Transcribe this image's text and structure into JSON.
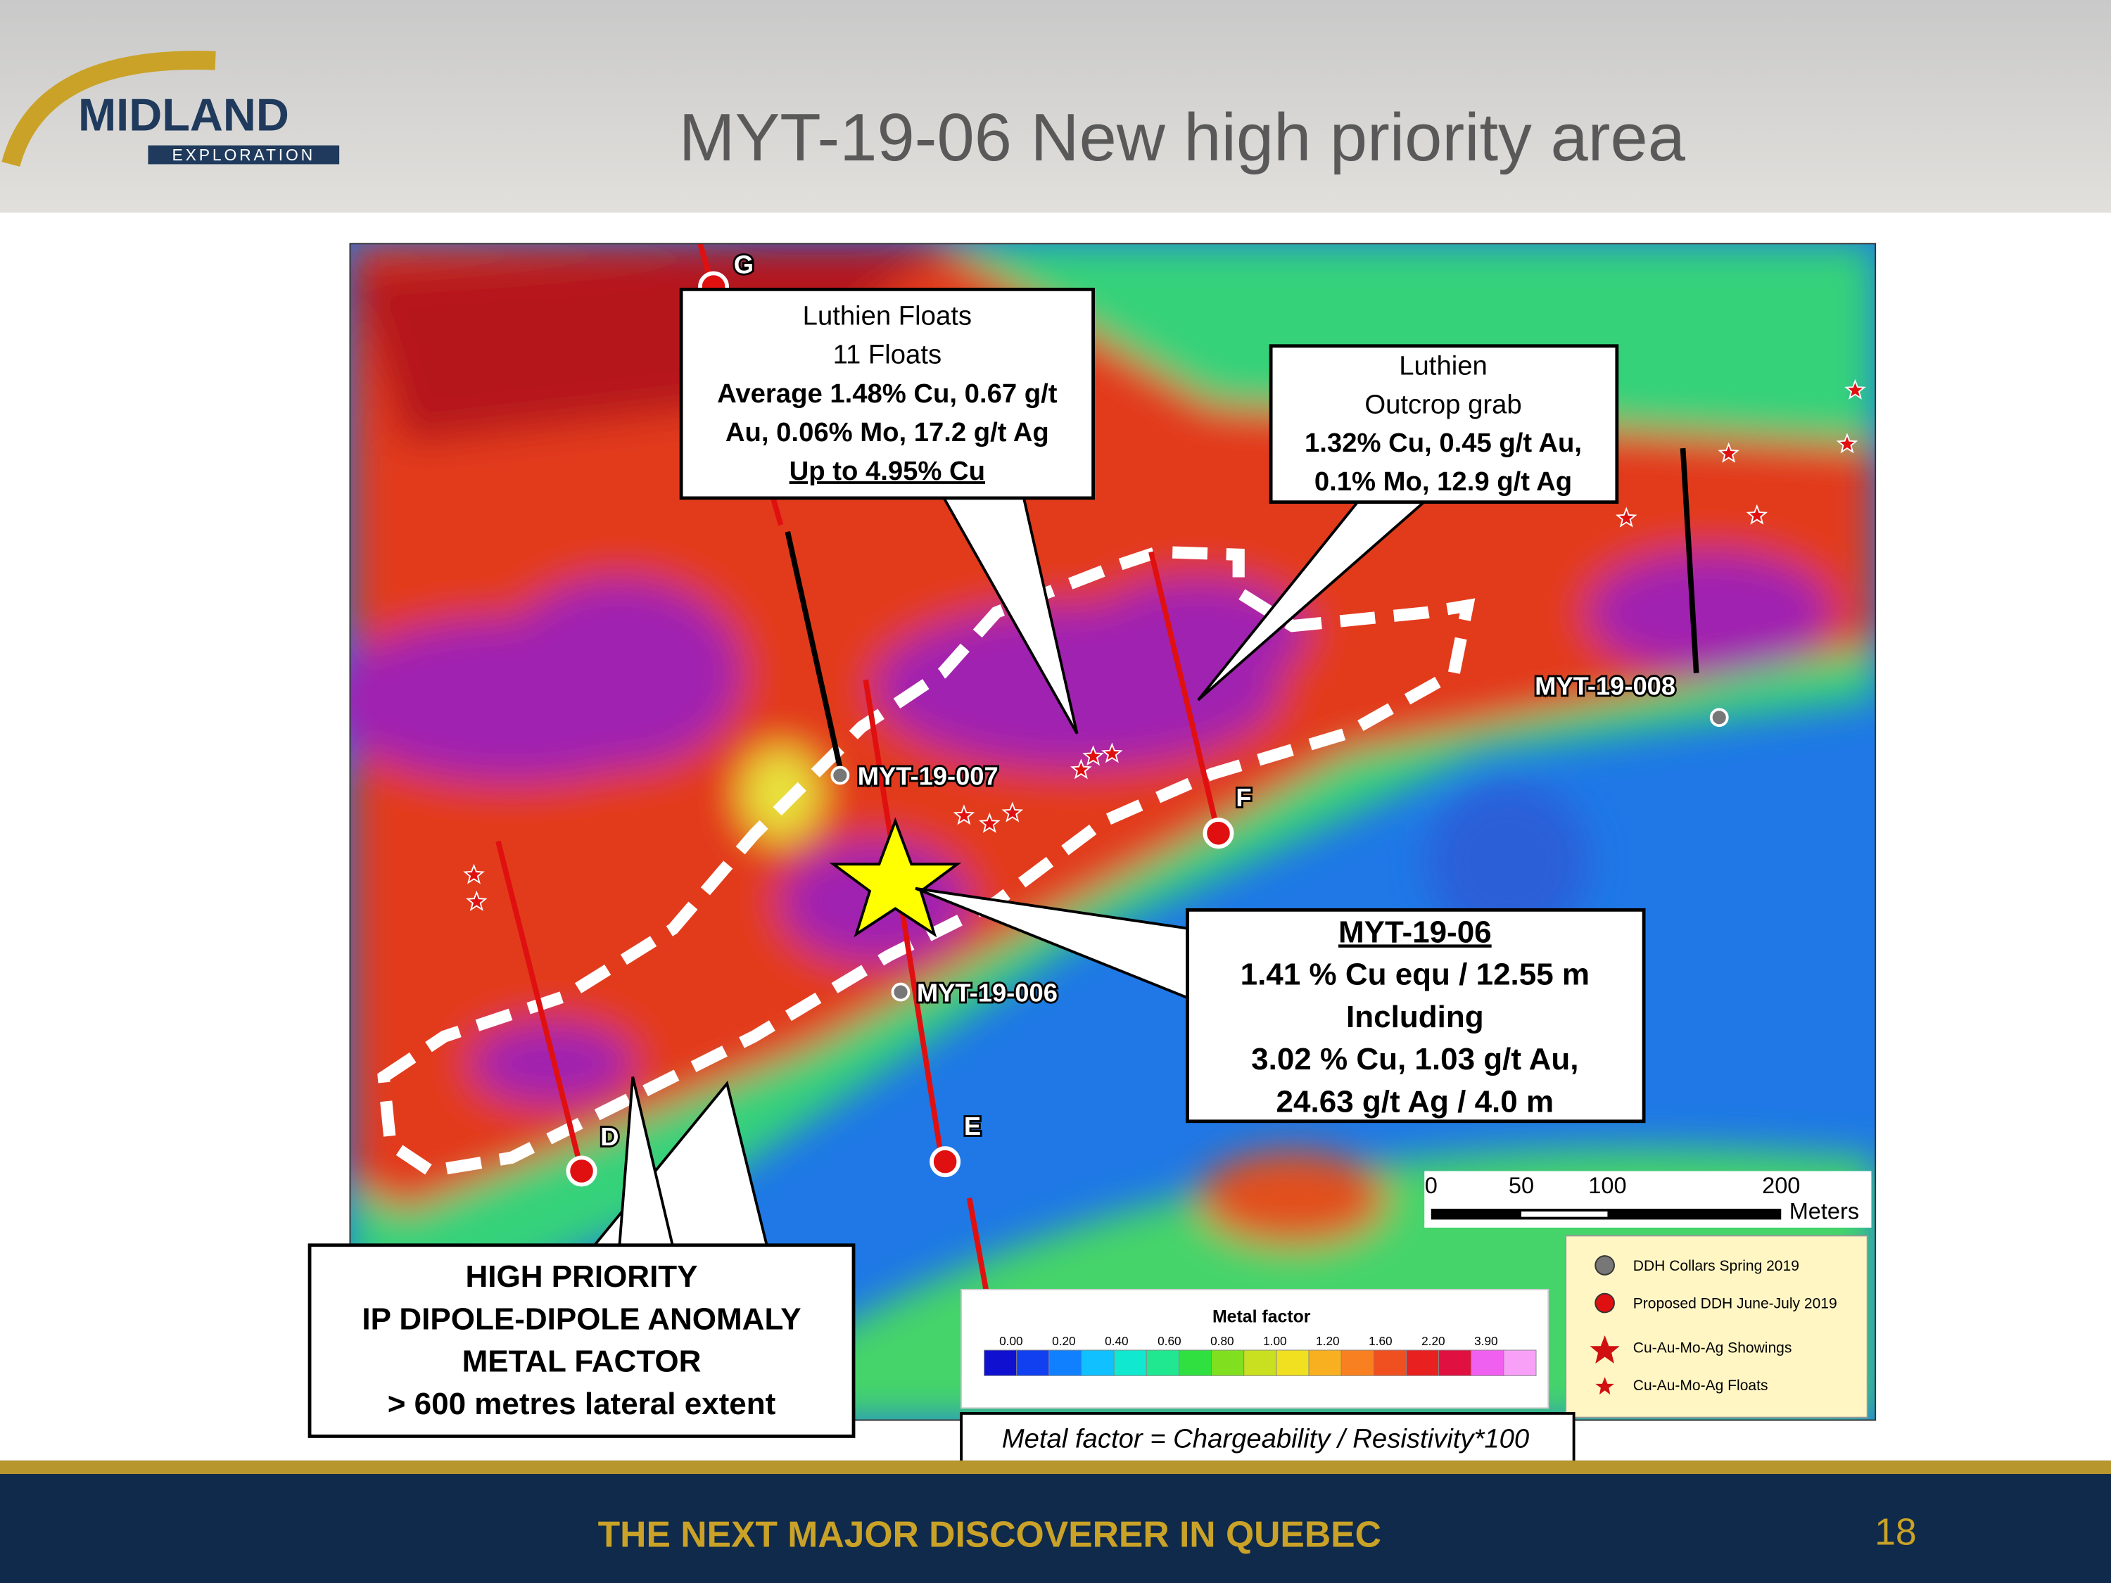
{
  "header": {
    "logo": {
      "name": "MIDLAND",
      "subtitle": "EXPLORATION"
    },
    "title": "MYT-19-06  New high priority area"
  },
  "map": {
    "drill_labels": [
      "MYT-19-007",
      "MYT-19-006",
      "MYT-19-008"
    ],
    "section_labels": [
      "G",
      "F",
      "D",
      "E"
    ],
    "callouts": [
      {
        "lines": [
          "Luthien Floats",
          "11 Floats",
          "Average 1.48% Cu, 0.67 g/t",
          "Au, 0.06% Mo, 17.2 g/t Ag",
          "Up to 4.95% Cu"
        ]
      },
      {
        "lines": [
          "Luthien",
          "Outcrop grab",
          "1.32% Cu, 0.45 g/t Au,",
          "0.1% Mo, 12.9 g/t Ag"
        ]
      },
      {
        "lines": [
          "MYT-19-06",
          "1.41 % Cu equ / 12.55 m",
          "Including",
          "3.02 % Cu, 1.03 g/t Au,",
          "24.63 g/t Ag / 4.0 m"
        ]
      },
      {
        "lines": [
          "HIGH PRIORITY",
          "IP DIPOLE-DIPOLE ANOMALY",
          "METAL FACTOR",
          "> 600 metres lateral extent"
        ]
      }
    ],
    "scale": {
      "ticks": [
        "0",
        "50",
        "100",
        "200"
      ],
      "unit": "Meters"
    },
    "colorbar": {
      "title": "Metal factor",
      "ticks": [
        "0.00",
        "0.20",
        "0.40",
        "0.60",
        "0.80",
        "1.00",
        "1.20",
        "1.60",
        "2.20",
        "3.90"
      ]
    },
    "legend": [
      "DDH Collars Spring 2019",
      "Proposed DDH June-July 2019",
      "Cu-Au-Mo-Ag Showings",
      "Cu-Au-Mo-Ag Floats"
    ],
    "formula": "Metal factor = Chargeability / Resistivity*100"
  },
  "footer": {
    "tagline": "THE NEXT MAJOR DISCOVERER IN QUEBEC",
    "page": "18"
  }
}
